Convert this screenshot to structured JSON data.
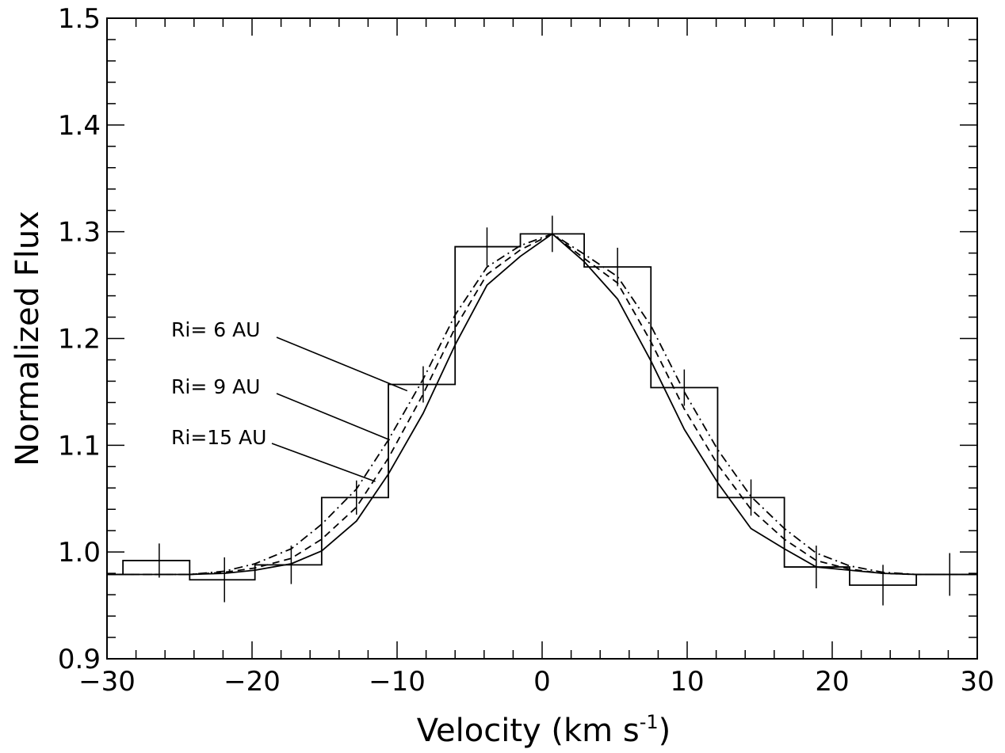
{
  "chart_data": {
    "type": "line",
    "xlabel": "Velocity (km s",
    "xlabel_sup": "-1",
    "xlabel_close": ")",
    "ylabel": "Normalized Flux",
    "xlim": [
      -30,
      30
    ],
    "ylim": [
      0.9,
      1.5
    ],
    "x_ticks": [
      -30,
      -20,
      -10,
      0,
      10,
      20,
      30
    ],
    "x_tick_labels": [
      "−30",
      "−20",
      "−10",
      "0",
      "10",
      "20",
      "30"
    ],
    "y_ticks": [
      0.9,
      1.0,
      1.1,
      1.2,
      1.3,
      1.4,
      1.5
    ],
    "y_tick_labels": [
      "0.9",
      "1.0",
      "1.1",
      "1.2",
      "1.3",
      "1.4",
      "1.5"
    ],
    "grid": false,
    "histogram": {
      "edges": [
        -30,
        -28.9,
        -24.3,
        -19.8,
        -15.2,
        -10.6,
        -6.0,
        -1.5,
        2.9,
        7.5,
        12.1,
        16.7,
        21.2,
        25.8,
        30
      ],
      "values": [
        0.979,
        0.992,
        0.974,
        0.988,
        1.051,
        1.157,
        1.286,
        1.298,
        1.267,
        1.154,
        1.051,
        0.986,
        0.969,
        0.979
      ]
    },
    "errorbars": [
      {
        "x": -26.4,
        "y": 0.992,
        "err": 0.016
      },
      {
        "x": -21.9,
        "y": 0.974,
        "err": 0.021
      },
      {
        "x": -17.3,
        "y": 0.988,
        "err": 0.018
      },
      {
        "x": -12.8,
        "y": 1.051,
        "err": 0.016
      },
      {
        "x": -8.2,
        "y": 1.157,
        "err": 0.017
      },
      {
        "x": -3.8,
        "y": 1.286,
        "err": 0.018
      },
      {
        "x": 0.7,
        "y": 1.298,
        "err": 0.017
      },
      {
        "x": 5.2,
        "y": 1.267,
        "err": 0.018
      },
      {
        "x": 9.8,
        "y": 1.154,
        "err": 0.017
      },
      {
        "x": 14.4,
        "y": 1.051,
        "err": 0.017
      },
      {
        "x": 18.9,
        "y": 0.986,
        "err": 0.02
      },
      {
        "x": 23.5,
        "y": 0.969,
        "err": 0.019
      },
      {
        "x": 28.1,
        "y": 0.979,
        "err": 0.02
      }
    ],
    "series": [
      {
        "style": "solid",
        "x": [
          -30,
          -28.1,
          -26.4,
          -24.3,
          -21.9,
          -19.8,
          -17.3,
          -15.2,
          -12.8,
          -10.6,
          -8.2,
          -6.0,
          -3.8,
          -1.5,
          0.7,
          2.9,
          5.2,
          7.5,
          9.8,
          12.1,
          14.4,
          16.7,
          18.9,
          21.2,
          23.5,
          25.8,
          28.1,
          30
        ],
        "y": [
          0.979,
          0.979,
          0.979,
          0.979,
          0.98,
          0.983,
          0.989,
          1.001,
          1.029,
          1.073,
          1.13,
          1.194,
          1.25,
          1.277,
          1.298,
          1.272,
          1.237,
          1.179,
          1.115,
          1.065,
          1.022,
          1.003,
          0.986,
          0.983,
          0.98,
          0.979,
          0.979,
          0.979
        ]
      },
      {
        "style": "dashed",
        "x": [
          -30,
          -28.1,
          -26.4,
          -24.3,
          -21.9,
          -19.8,
          -17.3,
          -15.2,
          -12.8,
          -10.6,
          -8.2,
          -6.0,
          -3.8,
          -1.5,
          0.7,
          2.9,
          5.2,
          7.5,
          9.8,
          12.1,
          14.4,
          16.7,
          18.9,
          21.2,
          23.5,
          25.8,
          28.1,
          30
        ],
        "y": [
          0.979,
          0.979,
          0.979,
          0.979,
          0.981,
          0.985,
          0.994,
          1.012,
          1.042,
          1.088,
          1.148,
          1.21,
          1.26,
          1.283,
          1.298,
          1.275,
          1.252,
          1.197,
          1.134,
          1.082,
          1.04,
          1.012,
          0.992,
          0.984,
          0.98,
          0.979,
          0.979,
          0.979
        ]
      },
      {
        "style": "dash-dot",
        "x": [
          -30,
          -28.1,
          -26.4,
          -24.3,
          -21.9,
          -19.8,
          -17.3,
          -15.2,
          -12.8,
          -10.6,
          -8.2,
          -6.0,
          -3.8,
          -1.5,
          0.7,
          2.9,
          5.2,
          7.5,
          9.8,
          12.1,
          14.4,
          16.7,
          18.9,
          21.2,
          23.5,
          25.8,
          28.1,
          30
        ],
        "y": [
          0.979,
          0.979,
          0.979,
          0.979,
          0.982,
          0.989,
          1.003,
          1.026,
          1.059,
          1.105,
          1.162,
          1.222,
          1.267,
          1.287,
          1.298,
          1.279,
          1.258,
          1.212,
          1.15,
          1.096,
          1.052,
          1.022,
          0.999,
          0.987,
          0.981,
          0.979,
          0.979,
          0.979
        ]
      }
    ],
    "annotations": [
      {
        "label": "Ri= 6 AU",
        "target": {
          "x": -9.3,
          "y": 1.151
        }
      },
      {
        "label": "Ri= 9 AU",
        "target": {
          "x": -10.5,
          "y": 1.105
        }
      },
      {
        "label": "Ri=15 AU",
        "target": {
          "x": -11.5,
          "y": 1.066
        }
      }
    ]
  }
}
